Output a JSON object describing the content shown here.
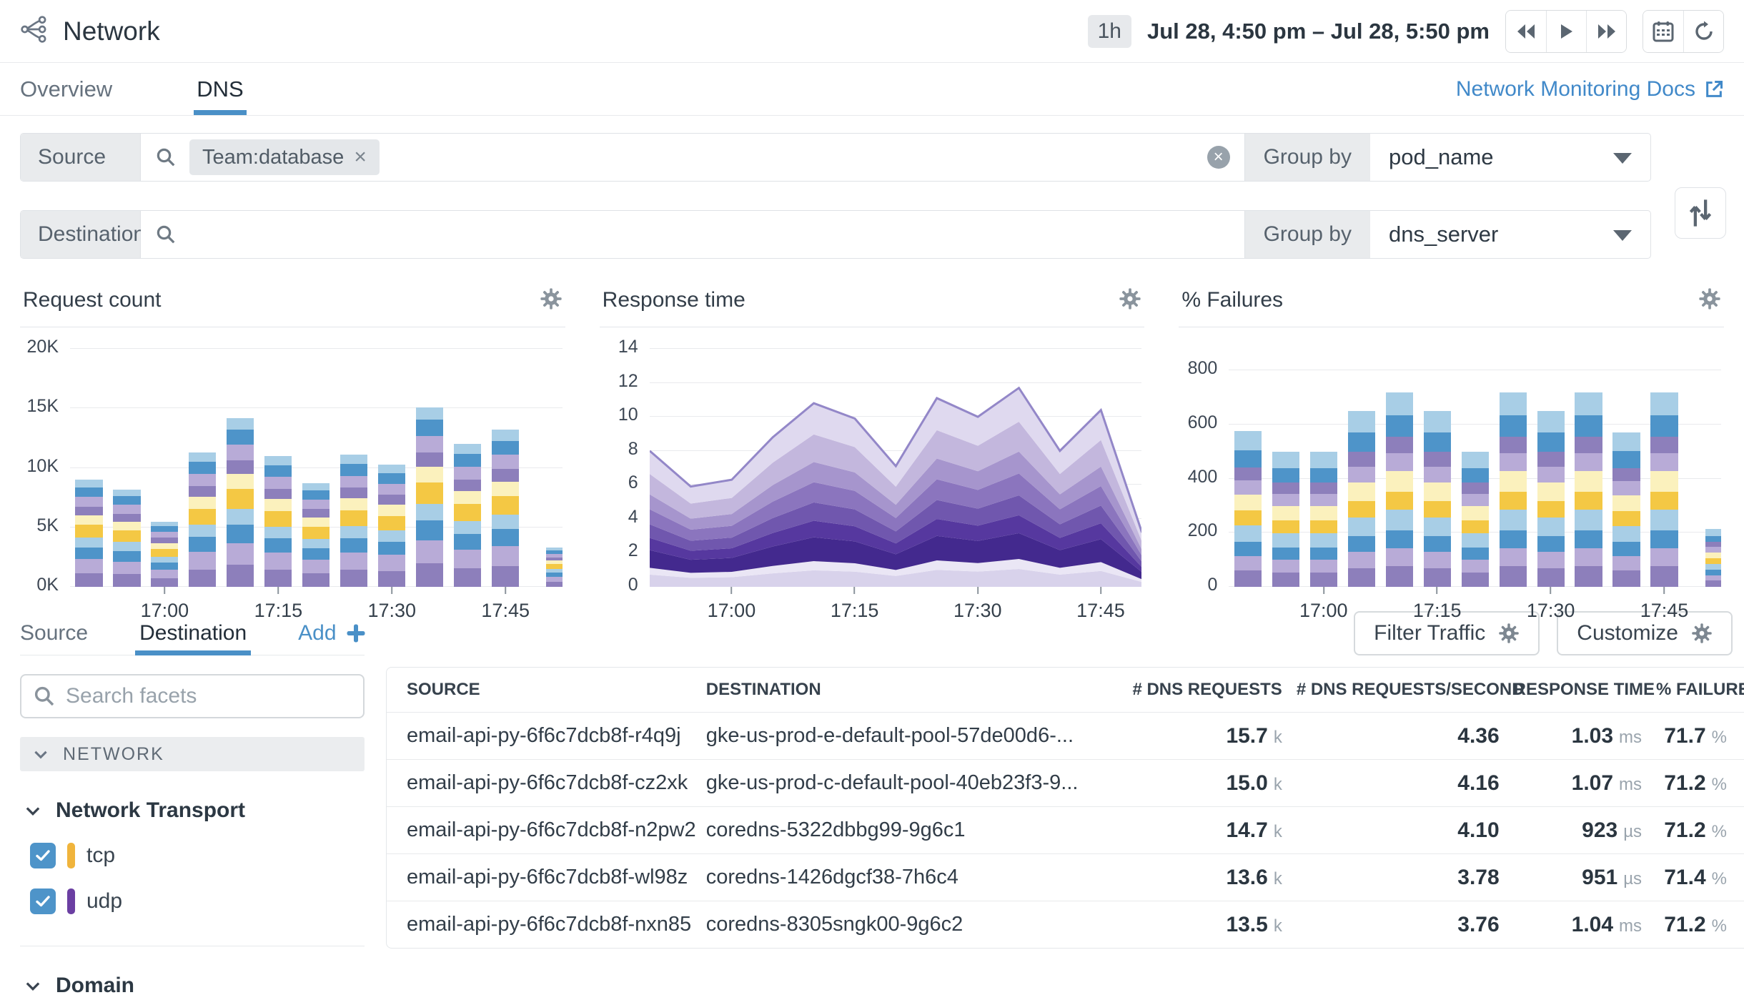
{
  "header": {
    "title": "Network",
    "time_preset": "1h",
    "time_range": "Jul 28, 4:50 pm – Jul 28, 5:50 pm"
  },
  "tabs": {
    "overview": "Overview",
    "dns": "DNS",
    "active": "DNS",
    "docs_link": "Network Monitoring Docs"
  },
  "filters": {
    "source_label": "Source",
    "destination_label": "Destination",
    "source_tag": "Team:database",
    "group_by_label": "Group by",
    "source_group_by": "pod_name",
    "destination_group_by": "dns_server"
  },
  "chart_data": [
    {
      "type": "bar",
      "kind": "stacked_bar",
      "title": "Request count",
      "x": [
        "16:50",
        "16:55",
        "17:00",
        "17:05",
        "17:10",
        "17:15",
        "17:20",
        "17:25",
        "17:30",
        "17:35",
        "17:40",
        "17:45",
        "17:50"
      ],
      "totals": [
        9000,
        8200,
        5500,
        11300,
        14200,
        11000,
        8700,
        11100,
        10300,
        15100,
        12000,
        13200,
        3300
      ],
      "stack_fractions": [
        0.13,
        0.13,
        0.11,
        0.09,
        0.12,
        0.09,
        0.08,
        0.09,
        0.09,
        0.07
      ],
      "palette": [
        "#8d7fbb",
        "#b8abd7",
        "#4e94c9",
        "#a8cee6",
        "#f4c844",
        "#fbf1bd",
        "#8d7fbb",
        "#b8abd7",
        "#4e94c9",
        "#a8cee6"
      ],
      "ylim": [
        0,
        20000
      ],
      "yticks": [
        {
          "v": 0,
          "label": "0K"
        },
        {
          "v": 5000,
          "label": "5K"
        },
        {
          "v": 10000,
          "label": "10K"
        },
        {
          "v": 15000,
          "label": "15K"
        },
        {
          "v": 20000,
          "label": "20K"
        }
      ],
      "xticks": [
        {
          "i": 2,
          "label": "17:00"
        },
        {
          "i": 5,
          "label": "17:15"
        },
        {
          "i": 8,
          "label": "17:30"
        },
        {
          "i": 11,
          "label": "17:45"
        }
      ],
      "partial_last_bar": true,
      "grid": true,
      "legend": "none"
    },
    {
      "type": "area",
      "kind": "stacked_area",
      "title": "Response time",
      "x": [
        "16:50",
        "16:55",
        "17:00",
        "17:05",
        "17:10",
        "17:15",
        "17:20",
        "17:25",
        "17:30",
        "17:35",
        "17:40",
        "17:45",
        "17:50"
      ],
      "totals": [
        8.0,
        5.9,
        6.3,
        8.8,
        10.8,
        9.9,
        7.1,
        11.1,
        10.0,
        11.7,
        8.0,
        10.4,
        3.2
      ],
      "stack_fractions": [
        0.09,
        0.05,
        0.13,
        0.09,
        0.1,
        0.11,
        0.11,
        0.15,
        0.17
      ],
      "palette": [
        "#d8d2eb",
        "#eae6f5",
        "#43298e",
        "#56389f",
        "#7057ae",
        "#8b75be",
        "#a695cd",
        "#c3b7dd",
        "#dfd9ef"
      ],
      "stroke": "#9387c8",
      "ylim": [
        0,
        14
      ],
      "yticks": [
        {
          "v": 0,
          "label": "0"
        },
        {
          "v": 2,
          "label": "2"
        },
        {
          "v": 4,
          "label": "4"
        },
        {
          "v": 6,
          "label": "6"
        },
        {
          "v": 8,
          "label": "8"
        },
        {
          "v": 10,
          "label": "10"
        },
        {
          "v": 12,
          "label": "12"
        },
        {
          "v": 14,
          "label": "14"
        }
      ],
      "xticks": [
        {
          "i": 2,
          "label": "17:00"
        },
        {
          "i": 5,
          "label": "17:15"
        },
        {
          "i": 8,
          "label": "17:30"
        },
        {
          "i": 11,
          "label": "17:45"
        }
      ],
      "grid": true,
      "legend": "none"
    },
    {
      "type": "bar",
      "kind": "stacked_bar",
      "title": "% Failures",
      "x": [
        "16:50",
        "16:55",
        "17:00",
        "17:05",
        "17:10",
        "17:15",
        "17:20",
        "17:25",
        "17:30",
        "17:35",
        "17:40",
        "17:45",
        "17:50"
      ],
      "totals": [
        575,
        500,
        500,
        650,
        720,
        650,
        500,
        720,
        650,
        720,
        570,
        720,
        215
      ],
      "stack_fractions": [
        0.105,
        0.095,
        0.09,
        0.105,
        0.095,
        0.105,
        0.09,
        0.085,
        0.11,
        0.12
      ],
      "palette": [
        "#8d7fbb",
        "#b8abd7",
        "#4e94c9",
        "#a8cee6",
        "#f4c844",
        "#fbf1bd",
        "#b8abd7",
        "#8d7fbb",
        "#4e94c9",
        "#a8cee6"
      ],
      "ylim": [
        0,
        880
      ],
      "yticks": [
        {
          "v": 0,
          "label": "0"
        },
        {
          "v": 200,
          "label": "200"
        },
        {
          "v": 400,
          "label": "400"
        },
        {
          "v": 600,
          "label": "600"
        },
        {
          "v": 800,
          "label": "800"
        }
      ],
      "xticks": [
        {
          "i": 2,
          "label": "17:00"
        },
        {
          "i": 5,
          "label": "17:15"
        },
        {
          "i": 8,
          "label": "17:30"
        },
        {
          "i": 11,
          "label": "17:45"
        }
      ],
      "partial_last_bar": true,
      "grid": true,
      "legend": "none"
    }
  ],
  "facets": {
    "tabs": {
      "source": "Source",
      "destination": "Destination",
      "active": "Destination",
      "add_label": "Add"
    },
    "search_placeholder": "Search facets",
    "section": "NETWORK",
    "groups": [
      {
        "name": "Network Transport",
        "items": [
          {
            "label": "tcp",
            "checked": true,
            "color": "#f0b43c"
          },
          {
            "label": "udp",
            "checked": true,
            "color": "#6b3fa2"
          }
        ]
      },
      {
        "name": "Domain",
        "items": []
      }
    ]
  },
  "actions": {
    "filter_traffic": "Filter Traffic",
    "customize": "Customize"
  },
  "table": {
    "columns": [
      "SOURCE",
      "DESTINATION",
      "# DNS REQUESTS",
      "# DNS REQUESTS/SECOND",
      "RESPONSE TIME",
      "% FAILURES"
    ],
    "rows": [
      {
        "source": "email-api-py-6f6c7dcb8f-r4q9j",
        "destination": "gke-us-prod-e-default-pool-57de00d6-...",
        "requests": {
          "v": "15.7",
          "u": "k"
        },
        "rps": {
          "v": "4.36",
          "u": ""
        },
        "response_time": {
          "v": "1.03",
          "u": "ms"
        },
        "failures": {
          "v": "71.7",
          "u": "%"
        }
      },
      {
        "source": "email-api-py-6f6c7dcb8f-cz2xk",
        "destination": "gke-us-prod-c-default-pool-40eb23f3-9...",
        "requests": {
          "v": "15.0",
          "u": "k"
        },
        "rps": {
          "v": "4.16",
          "u": ""
        },
        "response_time": {
          "v": "1.07",
          "u": "ms"
        },
        "failures": {
          "v": "71.2",
          "u": "%"
        }
      },
      {
        "source": "email-api-py-6f6c7dcb8f-n2pw2",
        "destination": "coredns-5322dbbg99-9g6c1",
        "requests": {
          "v": "14.7",
          "u": "k"
        },
        "rps": {
          "v": "4.10",
          "u": ""
        },
        "response_time": {
          "v": "923",
          "u": "µs"
        },
        "failures": {
          "v": "71.2",
          "u": "%"
        }
      },
      {
        "source": "email-api-py-6f6c7dcb8f-wl98z",
        "destination": "coredns-1426dgcf38-7h6c4",
        "requests": {
          "v": "13.6",
          "u": "k"
        },
        "rps": {
          "v": "3.78",
          "u": ""
        },
        "response_time": {
          "v": "951",
          "u": "µs"
        },
        "failures": {
          "v": "71.4",
          "u": "%"
        }
      },
      {
        "source": "email-api-py-6f6c7dcb8f-nxn85",
        "destination": "coredns-8305sngk00-9g6c2",
        "requests": {
          "v": "13.5",
          "u": "k"
        },
        "rps": {
          "v": "3.76",
          "u": ""
        },
        "response_time": {
          "v": "1.04",
          "u": "ms"
        },
        "failures": {
          "v": "71.2",
          "u": "%"
        }
      }
    ]
  },
  "colors": {
    "accent_blue": "#4a90c7",
    "checkbox_blue": "#4e94c9",
    "tcp_pill": "#f0b43c",
    "udp_pill": "#6b3fa2",
    "gray_box": "#e9ebed",
    "dark_text": "#2b3640"
  }
}
